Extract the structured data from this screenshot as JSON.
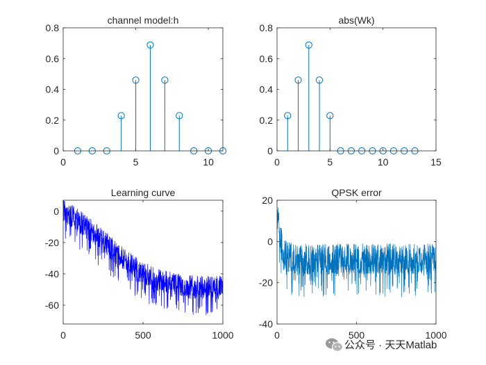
{
  "colors": {
    "stem": "#0072BD",
    "learning": "#0000FF",
    "qpsk": "#0072BD",
    "axis": "#262626",
    "watermark": "#6b6b6b"
  },
  "watermark": {
    "text": "公众号 · 天天Matlab",
    "icon": "wechat-logo-icon"
  },
  "chart_data": [
    {
      "type": "stem",
      "title": "channel model:h",
      "xlabel": "",
      "ylabel": "",
      "xlim": [
        0,
        11
      ],
      "ylim": [
        0,
        0.8
      ],
      "xticks": [
        0,
        5,
        10
      ],
      "yticks": [
        0,
        0.2,
        0.4,
        0.6,
        0.8
      ],
      "grid": false,
      "x": [
        1,
        2,
        3,
        4,
        5,
        6,
        7,
        8,
        9,
        10,
        11
      ],
      "values": [
        0,
        0,
        0,
        0.229,
        0.46,
        0.688,
        0.46,
        0.229,
        0,
        0,
        0
      ]
    },
    {
      "type": "stem",
      "title": "abs(Wk)",
      "xlabel": "",
      "ylabel": "",
      "xlim": [
        0,
        15
      ],
      "ylim": [
        0,
        0.8
      ],
      "xticks": [
        0,
        5,
        10,
        15
      ],
      "yticks": [
        0,
        0.2,
        0.4,
        0.6,
        0.8
      ],
      "grid": false,
      "x": [
        1,
        2,
        3,
        4,
        5,
        6,
        7,
        8,
        9,
        10,
        11,
        12,
        13
      ],
      "values": [
        0.229,
        0.46,
        0.688,
        0.46,
        0.229,
        0,
        0,
        0,
        0,
        0,
        0,
        0,
        0
      ]
    },
    {
      "type": "line",
      "title": "Learning curve",
      "xlabel": "",
      "ylabel": "",
      "xlim": [
        0,
        1000
      ],
      "ylim": [
        -72,
        7
      ],
      "xticks": [
        0,
        500,
        1000
      ],
      "yticks": [
        -60,
        -40,
        -20,
        0
      ],
      "grid": false,
      "series": [
        {
          "x_range": [
            1,
            1000
          ],
          "trend": [
            [
              0,
              2
            ],
            [
              100,
              -5
            ],
            [
              200,
              -13
            ],
            [
              300,
              -22
            ],
            [
              400,
              -31
            ],
            [
              500,
              -38
            ],
            [
              600,
              -43
            ],
            [
              700,
              -45
            ],
            [
              800,
              -47
            ],
            [
              900,
              -47
            ],
            [
              1000,
              -47
            ]
          ],
          "noise_band_below": 20,
          "noise_band_above": 6
        }
      ]
    },
    {
      "type": "line",
      "title": "QPSK error",
      "xlabel": "",
      "ylabel": "",
      "xlim": [
        0,
        1000
      ],
      "ylim": [
        -40,
        20
      ],
      "xticks": [
        0,
        500,
        1000
      ],
      "yticks": [
        -40,
        -20,
        0,
        20
      ],
      "grid": false,
      "series": [
        {
          "x_range": [
            1,
            1000
          ],
          "trend": [
            [
              0,
              17
            ],
            [
              10,
              12
            ],
            [
              20,
              5
            ],
            [
              40,
              -5
            ],
            [
              100,
              -7
            ],
            [
              1000,
              -7
            ]
          ],
          "noise_band_below": 20,
          "noise_band_above": 6
        }
      ]
    }
  ]
}
